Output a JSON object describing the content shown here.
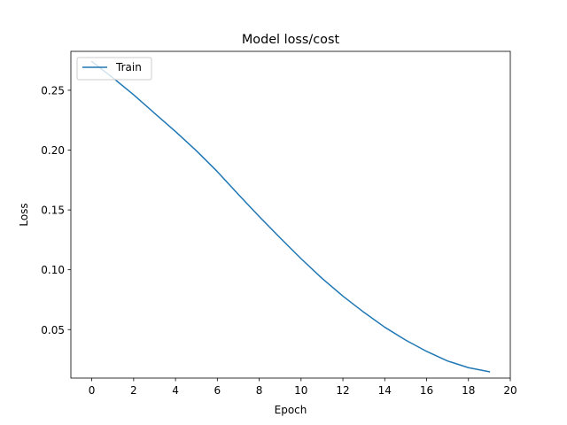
{
  "chart_data": {
    "type": "line",
    "title": "Model loss/cost",
    "xlabel": "Epoch",
    "ylabel": "Loss",
    "xlim": [
      -1,
      20
    ],
    "ylim": [
      0.0095,
      0.2825
    ],
    "xticks": [
      0,
      2,
      4,
      6,
      8,
      10,
      12,
      14,
      16,
      18,
      20
    ],
    "yticks": [
      0.05,
      0.1,
      0.15,
      0.2,
      0.25
    ],
    "xtick_labels": [
      "0",
      "2",
      "4",
      "6",
      "8",
      "10",
      "12",
      "14",
      "16",
      "18",
      "20"
    ],
    "ytick_labels": [
      "0.05",
      "0.10",
      "0.15",
      "0.20",
      "0.25"
    ],
    "grid": false,
    "legend_position": "top-left",
    "series": [
      {
        "name": "Train",
        "color": "#1f77b4",
        "x": [
          0,
          1,
          2,
          3,
          4,
          5,
          6,
          7,
          8,
          9,
          10,
          11,
          12,
          13,
          14,
          15,
          16,
          17,
          18,
          19
        ],
        "y": [
          0.274,
          0.2605,
          0.2462,
          0.2308,
          0.2155,
          0.1994,
          0.182,
          0.163,
          0.1445,
          0.1267,
          0.1093,
          0.0929,
          0.078,
          0.0645,
          0.052,
          0.0412,
          0.0318,
          0.0238,
          0.0182,
          0.0148
        ]
      }
    ]
  }
}
